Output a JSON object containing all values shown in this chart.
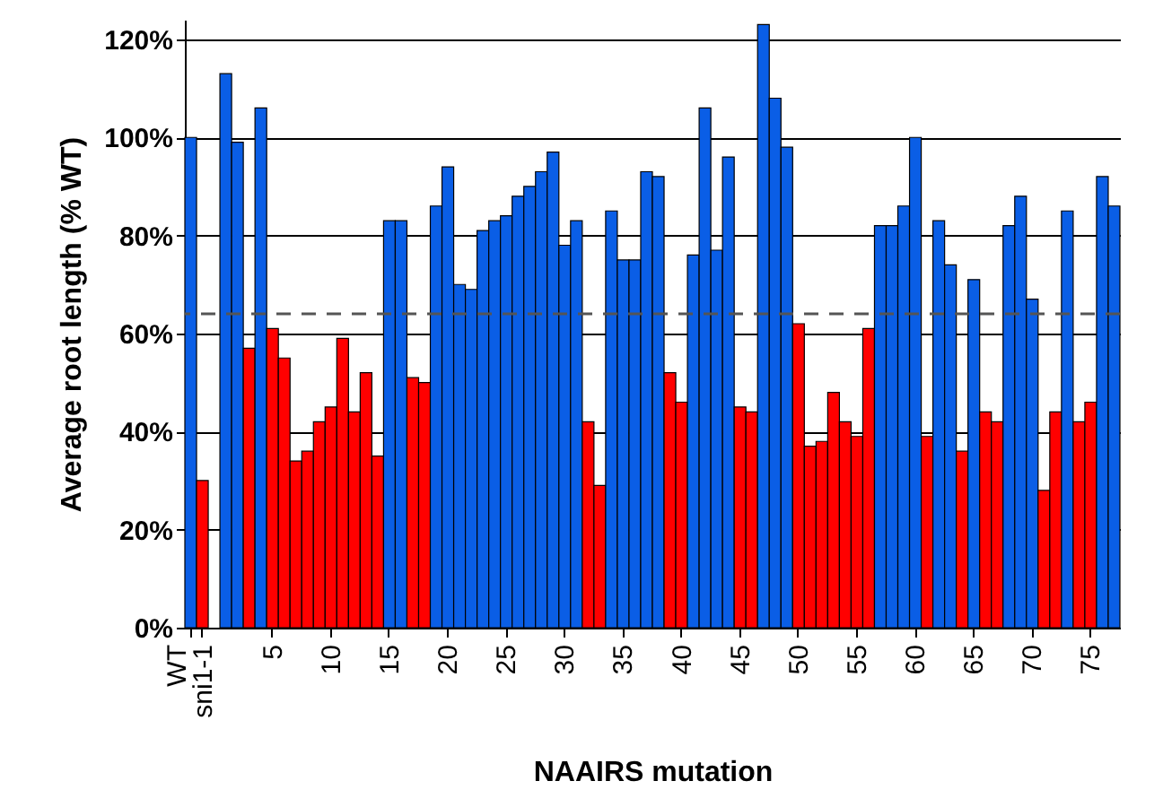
{
  "chart_data": {
    "type": "bar",
    "xlabel": "NAAIRS mutation",
    "ylabel": "Average root length (% WT)",
    "categories": [
      "WT",
      "sni1-1",
      null,
      null,
      null,
      null,
      null,
      "5",
      null,
      null,
      null,
      null,
      "10",
      null,
      null,
      null,
      null,
      "15",
      null,
      null,
      null,
      null,
      "20",
      null,
      null,
      null,
      null,
      "25",
      null,
      null,
      null,
      null,
      "30",
      null,
      null,
      null,
      null,
      "35",
      null,
      null,
      null,
      null,
      "40",
      null,
      null,
      null,
      null,
      "45",
      null,
      null,
      null,
      null,
      "50",
      null,
      null,
      null,
      null,
      "55",
      null,
      null,
      null,
      null,
      "60",
      null,
      null,
      null,
      null,
      "65",
      null,
      null,
      null,
      null,
      "70",
      null,
      null,
      null,
      null,
      "75",
      null,
      null
    ],
    "values": [
      100,
      30,
      null,
      113,
      99,
      57,
      106,
      61,
      55,
      34,
      36,
      42,
      45,
      59,
      44,
      52,
      35,
      83,
      83,
      51,
      50,
      86,
      94,
      70,
      69,
      81,
      83,
      84,
      88,
      90,
      93,
      97,
      78,
      83,
      42,
      29,
      85,
      75,
      75,
      93,
      92,
      52,
      46,
      76,
      106,
      77,
      96,
      45,
      44,
      123,
      108,
      98,
      62,
      37,
      38,
      48,
      42,
      39,
      61,
      82,
      82,
      86,
      100,
      39,
      83,
      74,
      36,
      71,
      44,
      42,
      82,
      88,
      67,
      28,
      44,
      85,
      42,
      46,
      92,
      86
    ],
    "colors": [
      "#0a5ee6",
      "#ff0000",
      null,
      "#0a5ee6",
      "#0a5ee6",
      "#ff0000",
      "#0a5ee6",
      "#ff0000",
      "#ff0000",
      "#ff0000",
      "#ff0000",
      "#ff0000",
      "#ff0000",
      "#ff0000",
      "#ff0000",
      "#ff0000",
      "#ff0000",
      "#0a5ee6",
      "#0a5ee6",
      "#ff0000",
      "#ff0000",
      "#0a5ee6",
      "#0a5ee6",
      "#0a5ee6",
      "#0a5ee6",
      "#0a5ee6",
      "#0a5ee6",
      "#0a5ee6",
      "#0a5ee6",
      "#0a5ee6",
      "#0a5ee6",
      "#0a5ee6",
      "#0a5ee6",
      "#0a5ee6",
      "#ff0000",
      "#ff0000",
      "#0a5ee6",
      "#0a5ee6",
      "#0a5ee6",
      "#0a5ee6",
      "#0a5ee6",
      "#ff0000",
      "#ff0000",
      "#0a5ee6",
      "#0a5ee6",
      "#0a5ee6",
      "#0a5ee6",
      "#ff0000",
      "#ff0000",
      "#0a5ee6",
      "#0a5ee6",
      "#0a5ee6",
      "#ff0000",
      "#ff0000",
      "#ff0000",
      "#ff0000",
      "#ff0000",
      "#ff0000",
      "#ff0000",
      "#0a5ee6",
      "#0a5ee6",
      "#0a5ee6",
      "#0a5ee6",
      "#ff0000",
      "#0a5ee6",
      "#0a5ee6",
      "#ff0000",
      "#0a5ee6",
      "#ff0000",
      "#ff0000",
      "#0a5ee6",
      "#0a5ee6",
      "#0a5ee6",
      "#ff0000",
      "#ff0000",
      "#0a5ee6",
      "#ff0000",
      "#ff0000",
      "#0a5ee6",
      "#0a5ee6"
    ],
    "ylim": [
      0,
      124
    ],
    "yticks": [
      {
        "value": 0,
        "label": "0%"
      },
      {
        "value": 20,
        "label": "20%"
      },
      {
        "value": 40,
        "label": "40%"
      },
      {
        "value": 60,
        "label": "60%"
      },
      {
        "value": 80,
        "label": "80%"
      },
      {
        "value": 100,
        "label": "100%"
      },
      {
        "value": 120,
        "label": "120%"
      }
    ],
    "grid": "y",
    "ref_lines": [
      {
        "axis": "y",
        "value": 64,
        "line_style": "dashed",
        "color": "#555555"
      }
    ]
  }
}
